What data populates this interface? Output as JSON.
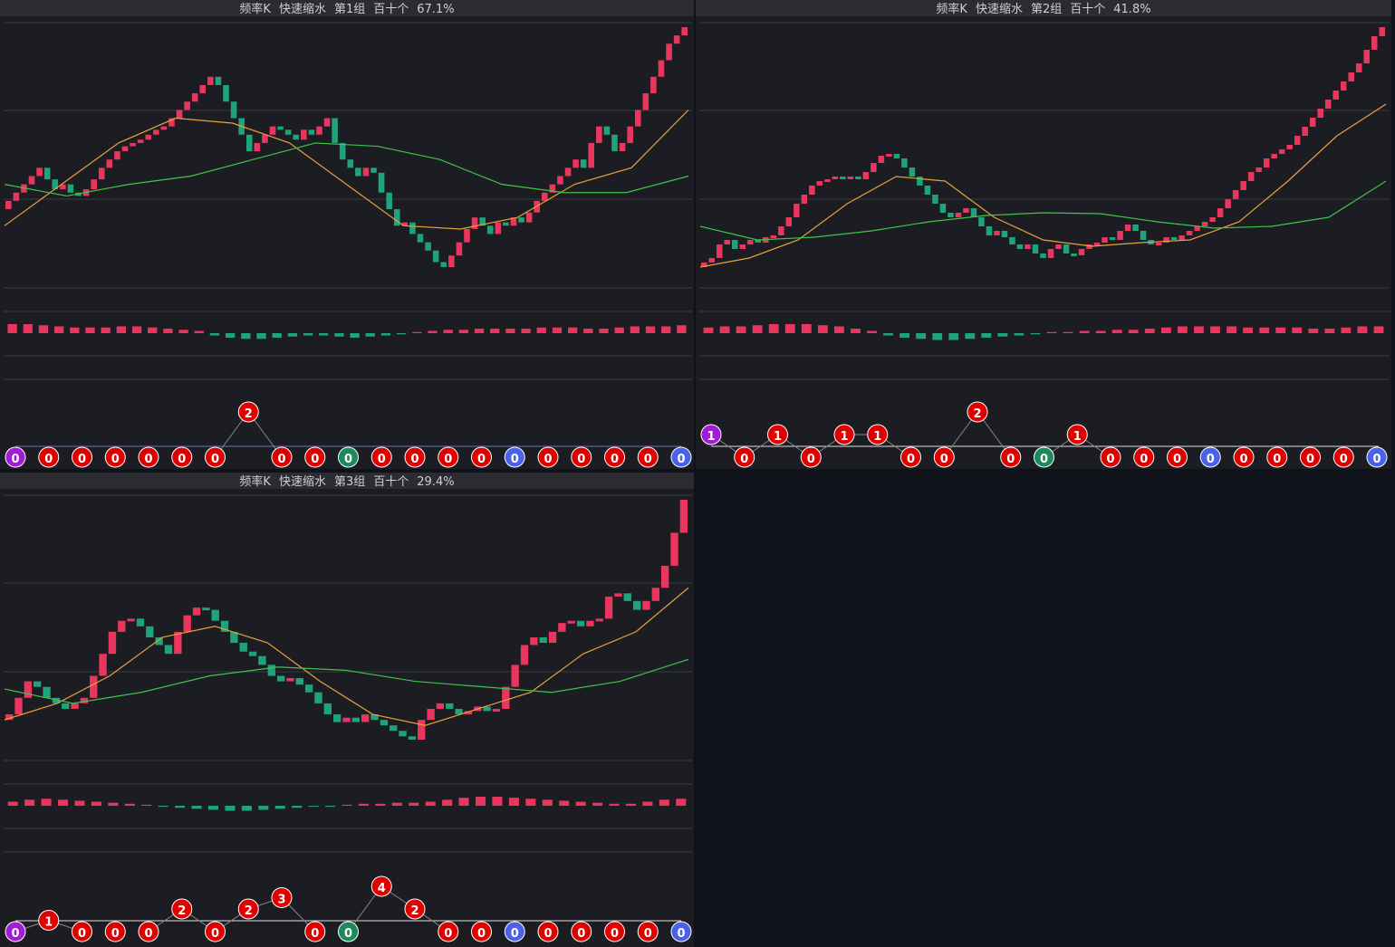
{
  "panels": [
    {
      "title": {
        "period": "频率K",
        "mode": "快速缩水",
        "group": "第1组",
        "digits": "百十个",
        "ratio": "67.1%"
      },
      "candles": [
        75,
        80,
        85,
        90,
        95,
        88,
        82,
        85,
        80,
        78,
        82,
        88,
        95,
        100,
        105,
        108,
        110,
        112,
        115,
        118,
        120,
        125,
        130,
        135,
        140,
        145,
        150,
        145,
        135,
        125,
        115,
        105,
        110,
        115,
        120,
        118,
        115,
        112,
        118,
        115,
        120,
        125,
        110,
        100,
        95,
        90,
        95,
        92,
        80,
        70,
        60,
        62,
        55,
        50,
        45,
        38,
        35,
        42,
        50,
        58,
        65,
        60,
        55,
        62,
        60,
        65,
        62,
        68,
        75,
        80,
        85,
        90,
        95,
        100,
        95,
        110,
        120,
        115,
        105,
        110,
        120,
        130,
        140,
        150,
        160,
        170,
        175,
        180
      ],
      "ma_fast": [
        60,
        85,
        110,
        125,
        122,
        110,
        85,
        60,
        58,
        65,
        85,
        95,
        130
      ],
      "ma_slow": [
        85,
        78,
        85,
        90,
        100,
        110,
        108,
        100,
        85,
        80,
        80,
        90
      ],
      "macd": [
        8,
        8,
        7,
        6,
        5,
        5,
        5,
        6,
        6,
        5,
        4,
        3,
        2,
        -2,
        -4,
        -5,
        -5,
        -4,
        -3,
        -2,
        -2,
        -3,
        -4,
        -3,
        -2,
        -1,
        1,
        2,
        3,
        3,
        4,
        4,
        4,
        4,
        5,
        5,
        5,
        4,
        4,
        5,
        6,
        6,
        6,
        7
      ],
      "signals": [
        0,
        0,
        0,
        0,
        0,
        0,
        0,
        2,
        0,
        0,
        0,
        0,
        0,
        0,
        0,
        0,
        0,
        0,
        0,
        0,
        0
      ],
      "signal_colors": [
        "#a21bd6",
        "#e00000",
        "#e00000",
        "#e00000",
        "#e00000",
        "#e00000",
        "#e00000",
        "#e00000",
        "#e00000",
        "#e00000",
        "#1d8a5c",
        "#e00000",
        "#e00000",
        "#e00000",
        "#e00000",
        "#4a62e8",
        "#e00000",
        "#e00000",
        "#e00000",
        "#e00000",
        "#4a62e8"
      ]
    },
    {
      "title": {
        "period": "频率K",
        "mode": "快速缩水",
        "group": "第2组",
        "digits": "百十个",
        "ratio": "41.8%"
      },
      "candles": [
        10,
        15,
        30,
        35,
        25,
        30,
        35,
        32,
        38,
        40,
        50,
        60,
        75,
        85,
        95,
        100,
        102,
        105,
        103,
        105,
        102,
        110,
        120,
        128,
        130,
        125,
        115,
        105,
        95,
        85,
        75,
        65,
        60,
        65,
        70,
        60,
        50,
        40,
        45,
        38,
        30,
        25,
        30,
        20,
        15,
        25,
        30,
        20,
        18,
        25,
        30,
        32,
        38,
        35,
        45,
        52,
        45,
        35,
        30,
        32,
        38,
        35,
        40,
        45,
        50,
        55,
        60,
        70,
        80,
        90,
        100,
        110,
        115,
        125,
        130,
        135,
        140,
        150,
        160,
        170,
        180,
        190,
        200,
        210,
        220,
        230,
        245,
        260,
        270
      ],
      "ma_fast": [
        5,
        15,
        35,
        75,
        105,
        100,
        60,
        35,
        28,
        32,
        35,
        55,
        100,
        150,
        185
      ],
      "ma_slow": [
        50,
        35,
        38,
        45,
        55,
        62,
        65,
        64,
        55,
        48,
        50,
        60,
        100
      ],
      "macd": [
        5,
        6,
        6,
        7,
        8,
        8,
        8,
        7,
        6,
        4,
        2,
        -2,
        -4,
        -5,
        -6,
        -6,
        -5,
        -4,
        -3,
        -2,
        -1,
        1,
        1,
        2,
        2,
        3,
        3,
        4,
        5,
        6,
        6,
        6,
        6,
        5,
        5,
        5,
        5,
        4,
        4,
        5,
        6,
        6
      ],
      "signals": [
        1,
        0,
        1,
        0,
        1,
        1,
        0,
        0,
        2,
        0,
        0,
        1,
        0,
        0,
        0,
        0,
        0,
        0,
        0,
        0,
        0
      ],
      "signal_colors": [
        "#a21bd6",
        "#e00000",
        "#e00000",
        "#e00000",
        "#e00000",
        "#e00000",
        "#e00000",
        "#e00000",
        "#e00000",
        "#e00000",
        "#1d8a5c",
        "#e00000",
        "#e00000",
        "#e00000",
        "#e00000",
        "#4a62e8",
        "#e00000",
        "#e00000",
        "#e00000",
        "#e00000",
        "#4a62e8"
      ]
    },
    {
      "title": {
        "period": "频率K",
        "mode": "快速缩水",
        "group": "第3组",
        "digits": "百十个",
        "ratio": "29.4%"
      },
      "candles": [
        25,
        40,
        55,
        50,
        40,
        35,
        30,
        35,
        40,
        60,
        80,
        100,
        110,
        112,
        105,
        95,
        88,
        80,
        100,
        115,
        122,
        120,
        110,
        100,
        90,
        82,
        78,
        70,
        60,
        55,
        58,
        52,
        45,
        35,
        25,
        18,
        22,
        18,
        25,
        20,
        15,
        10,
        5,
        2,
        20,
        30,
        35,
        30,
        25,
        28,
        32,
        28,
        30,
        50,
        70,
        88,
        95,
        90,
        100,
        108,
        110,
        105,
        110,
        112,
        132,
        135,
        128,
        120,
        128,
        140,
        160,
        190,
        220
      ],
      "ma_fast": [
        20,
        35,
        60,
        95,
        105,
        90,
        55,
        25,
        15,
        30,
        45,
        80,
        100,
        140
      ],
      "ma_slow": [
        48,
        35,
        45,
        60,
        68,
        65,
        55,
        50,
        45,
        55,
        75
      ],
      "macd": [
        4,
        6,
        7,
        6,
        5,
        4,
        3,
        2,
        1,
        -1,
        -2,
        -3,
        -4,
        -5,
        -5,
        -4,
        -3,
        -2,
        -1,
        -1,
        1,
        2,
        2,
        3,
        3,
        4,
        6,
        8,
        9,
        9,
        8,
        7,
        6,
        5,
        4,
        3,
        2,
        2,
        4,
        6,
        7
      ],
      "signals": [
        0,
        1,
        0,
        0,
        0,
        2,
        0,
        2,
        3,
        0,
        0,
        4,
        2,
        0,
        0,
        0,
        0,
        0,
        0,
        0,
        0
      ],
      "signal_colors": [
        "#a21bd6",
        "#e00000",
        "#e00000",
        "#e00000",
        "#e00000",
        "#e00000",
        "#e00000",
        "#e00000",
        "#e00000",
        "#e00000",
        "#1d8a5c",
        "#e00000",
        "#e00000",
        "#e00000",
        "#e00000",
        "#4a62e8",
        "#e00000",
        "#e00000",
        "#e00000",
        "#e00000",
        "#4a62e8"
      ]
    }
  ]
}
